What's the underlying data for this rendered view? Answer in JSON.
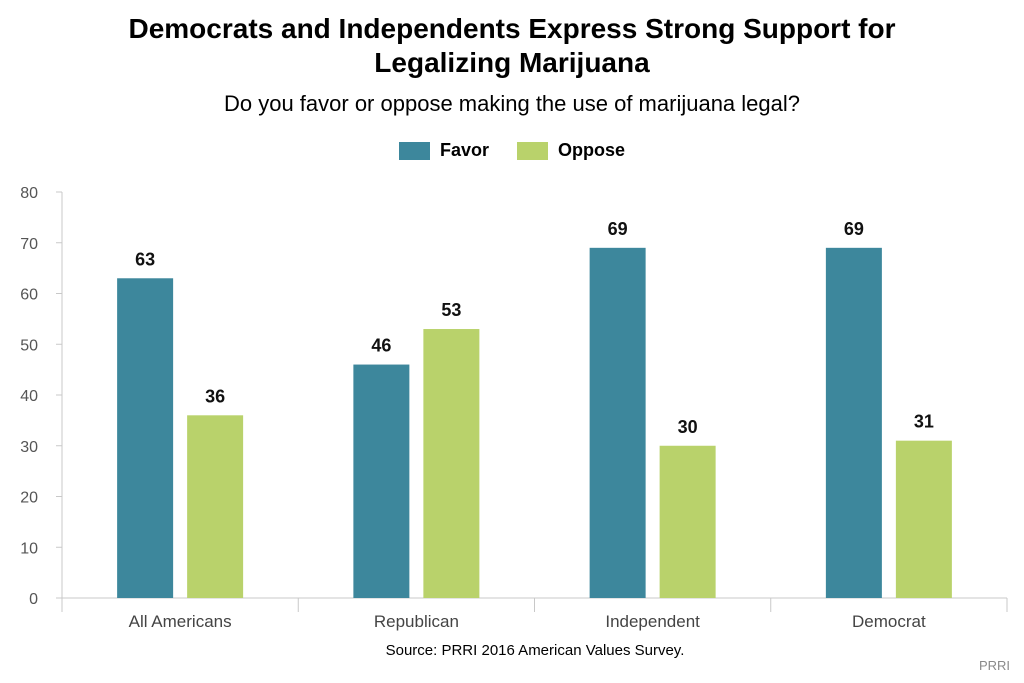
{
  "chart_data": {
    "type": "bar",
    "title": "Democrats and Independents Express Strong Support for Legalizing Marijuana",
    "subtitle": "Do you favor or oppose making the use of marijuana legal?",
    "categories": [
      "All Americans",
      "Republican",
      "Independent",
      "Democrat"
    ],
    "series": [
      {
        "name": "Favor",
        "values": [
          63,
          46,
          69,
          69
        ],
        "color": "#3d879c"
      },
      {
        "name": "Oppose",
        "values": [
          36,
          53,
          30,
          31
        ],
        "color": "#b9d26b"
      }
    ],
    "ylim": [
      0,
      80
    ],
    "yticks": [
      0,
      10,
      20,
      30,
      40,
      50,
      60,
      70,
      80
    ],
    "grid": false,
    "legend_position": "top-center",
    "xlabel": "",
    "ylabel": ""
  },
  "footer": {
    "source": "Source: PRRI 2016 American Values Survey.",
    "brand": "PRRI"
  }
}
